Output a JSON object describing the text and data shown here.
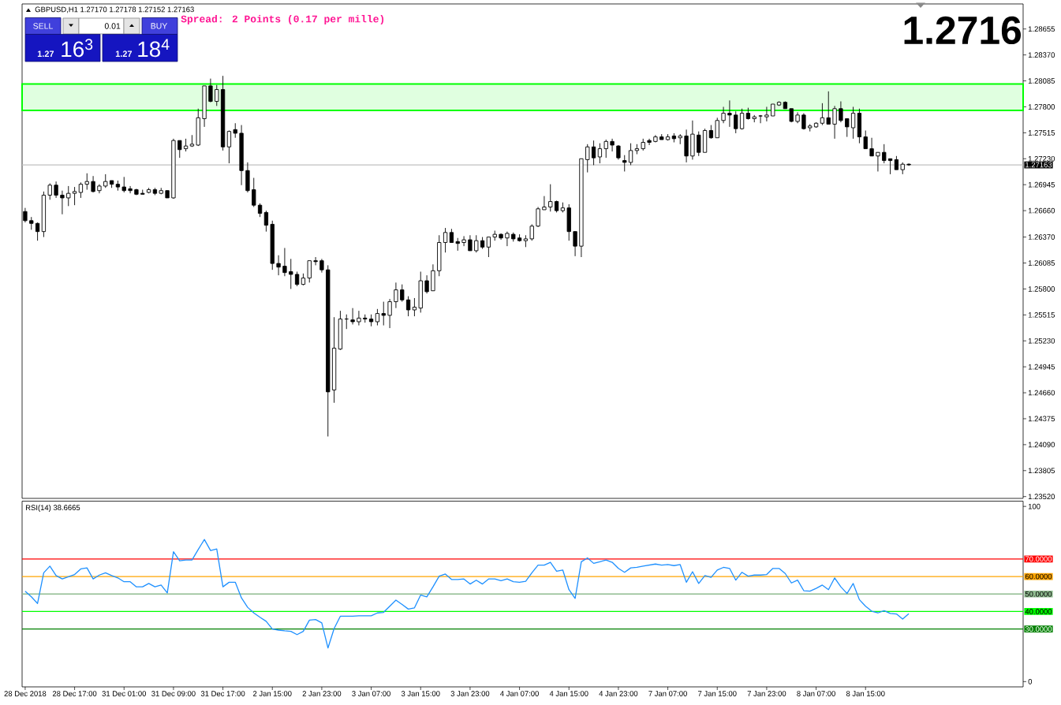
{
  "chart_data": [
    {
      "type": "candlestick",
      "title": "GBPUSD,H1 1.27170 1.27178 1.27152 1.27163",
      "annotations": [
        "Spread: 2 Points (0.17 per mille)",
        "1.2716",
        "SELL",
        "0.01",
        "BUY",
        "1.27",
        "16$^{3}$",
        "1.27",
        "18$^{4}$"
      ],
      "categories": [
        null,
        null,
        null,
        null,
        null,
        null,
        null,
        null,
        null,
        null,
        null,
        null,
        null,
        null,
        null,
        null,
        null,
        null,
        null,
        null,
        null,
        null,
        null,
        null,
        null,
        null,
        null,
        null,
        null,
        null,
        null,
        null,
        null,
        null,
        null,
        null,
        null,
        null,
        null,
        null,
        null,
        null,
        null,
        null,
        null,
        null,
        null,
        null,
        null,
        null,
        null,
        null,
        null,
        null,
        null,
        null,
        null,
        null,
        null,
        null,
        null,
        null,
        null,
        null,
        null,
        null,
        null,
        null,
        null,
        null,
        null,
        null,
        null,
        null,
        null,
        null,
        null,
        null,
        null,
        null,
        null,
        null,
        null,
        null,
        null,
        null,
        null,
        null,
        null,
        null,
        null,
        null,
        null,
        null,
        null,
        null,
        null,
        null,
        null,
        null,
        null,
        null,
        null,
        null,
        null,
        null,
        null,
        null,
        null,
        null,
        null,
        null,
        null,
        null,
        null,
        null,
        null,
        null,
        null,
        null,
        null,
        null,
        null,
        null,
        null,
        null,
        null,
        null,
        null,
        null,
        null,
        null,
        null,
        null,
        null,
        null,
        null,
        null,
        null,
        null,
        null,
        null,
        null,
        null,
        null,
        null,
        null,
        null,
        null,
        null,
        null,
        null,
        null,
        null,
        null,
        null,
        null,
        null,
        null,
        null,
        null,
        null
      ],
      "ohlc": [
        [
          1.2665,
          1.2669,
          1.2653,
          1.2655
        ],
        [
          1.2655,
          1.2659,
          1.2645,
          1.2652
        ],
        [
          1.2652,
          1.2653,
          1.2633,
          1.2643
        ],
        [
          1.2643,
          1.2687,
          1.2637,
          1.2683
        ],
        [
          1.2683,
          1.2696,
          1.2678,
          1.2694
        ],
        [
          1.2694,
          1.2698,
          1.268,
          1.2683
        ],
        [
          1.2683,
          1.2688,
          1.2662,
          1.268
        ],
        [
          1.268,
          1.2693,
          1.2671,
          1.2685
        ],
        [
          1.2685,
          1.2692,
          1.2672,
          1.2687
        ],
        [
          1.2686,
          1.2697,
          1.268,
          1.2695
        ],
        [
          1.2695,
          1.2707,
          1.2689,
          1.2698
        ],
        [
          1.2698,
          1.2704,
          1.2686,
          1.2687
        ],
        [
          1.2688,
          1.2695,
          1.2685,
          1.2693
        ],
        [
          1.2693,
          1.2706,
          1.2691,
          1.2698
        ],
        [
          1.2699,
          1.2699,
          1.2691,
          1.2695
        ],
        [
          1.2695,
          1.2699,
          1.2688,
          1.2692
        ],
        [
          1.2692,
          1.2703,
          1.2686,
          1.2688
        ],
        [
          1.269,
          1.2693,
          1.2685,
          1.2688
        ],
        [
          1.2689,
          1.269,
          1.2683,
          1.2684
        ],
        [
          1.2685,
          1.2689,
          1.2684,
          1.2684
        ],
        [
          1.2686,
          1.2691,
          1.2685,
          1.2689
        ],
        [
          1.2689,
          1.2691,
          1.2683,
          1.2685
        ],
        [
          1.2685,
          1.2691,
          1.2684,
          1.2688
        ],
        [
          1.2688,
          1.2688,
          1.268,
          1.268
        ],
        [
          1.268,
          1.2745,
          1.2679,
          1.2743
        ],
        [
          1.2743,
          1.2743,
          1.2724,
          1.2733
        ],
        [
          1.2734,
          1.2745,
          1.2731,
          1.2737
        ],
        [
          1.2737,
          1.2749,
          1.2736,
          1.2739
        ],
        [
          1.2738,
          1.2778,
          1.2737,
          1.2768
        ],
        [
          1.2767,
          1.2803,
          1.2758,
          1.2803
        ],
        [
          1.2803,
          1.2811,
          1.2785,
          1.2786
        ],
        [
          1.2786,
          1.2804,
          1.2781,
          1.2799
        ],
        [
          1.2799,
          1.2814,
          1.2732,
          1.2736
        ],
        [
          1.2736,
          1.2754,
          1.2718,
          1.2753
        ],
        [
          1.2755,
          1.2762,
          1.2746,
          1.2751
        ],
        [
          1.2751,
          1.276,
          1.2694,
          1.271
        ],
        [
          1.271,
          1.2719,
          1.2686,
          1.2688
        ],
        [
          1.2689,
          1.2702,
          1.267,
          1.2672
        ],
        [
          1.2672,
          1.2674,
          1.2659,
          1.2663
        ],
        [
          1.2664,
          1.2666,
          1.2643,
          1.265
        ],
        [
          1.2651,
          1.2655,
          1.2601,
          1.2608
        ],
        [
          1.2608,
          1.2617,
          1.2595,
          1.2604
        ],
        [
          1.2605,
          1.2625,
          1.2594,
          1.2598
        ],
        [
          1.2599,
          1.2613,
          1.258,
          1.2596
        ],
        [
          1.2596,
          1.2599,
          1.2583,
          1.2585
        ],
        [
          1.2585,
          1.2597,
          1.2584,
          1.2592
        ],
        [
          1.2592,
          1.2611,
          1.2587,
          1.2611
        ],
        [
          1.2611,
          1.2615,
          1.2606,
          1.261
        ],
        [
          1.2611,
          1.2613,
          1.2598,
          1.2601
        ],
        [
          1.2601,
          1.2606,
          1.2418,
          1.2467
        ],
        [
          1.2469,
          1.2549,
          1.2455,
          1.2515
        ],
        [
          1.2514,
          1.2556,
          1.2513,
          1.2547
        ],
        [
          1.2547,
          1.2552,
          1.2536,
          1.2547
        ],
        [
          1.2546,
          1.2559,
          1.2541,
          1.2544
        ],
        [
          1.2544,
          1.2556,
          1.254,
          1.2548
        ],
        [
          1.2548,
          1.2552,
          1.2543,
          1.2547
        ],
        [
          1.2547,
          1.2552,
          1.2539,
          1.2544
        ],
        [
          1.2544,
          1.2558,
          1.254,
          1.2553
        ],
        [
          1.2553,
          1.2566,
          1.254,
          1.2551
        ],
        [
          1.2551,
          1.2569,
          1.2537,
          1.2566
        ],
        [
          1.2566,
          1.2587,
          1.2559,
          1.2579
        ],
        [
          1.2579,
          1.2585,
          1.2566,
          1.2568
        ],
        [
          1.2568,
          1.2572,
          1.255,
          1.2557
        ],
        [
          1.2557,
          1.257,
          1.255,
          1.256
        ],
        [
          1.2559,
          1.2599,
          1.2554,
          1.2589
        ],
        [
          1.2589,
          1.2595,
          1.2575,
          1.2577
        ],
        [
          1.2578,
          1.2607,
          1.2578,
          1.26
        ],
        [
          1.26,
          1.2639,
          1.2594,
          1.2631
        ],
        [
          1.2631,
          1.2647,
          1.262,
          1.2642
        ],
        [
          1.2642,
          1.2646,
          1.2631,
          1.2631
        ],
        [
          1.2632,
          1.2636,
          1.2622,
          1.263
        ],
        [
          1.2631,
          1.2638,
          1.2627,
          1.2634
        ],
        [
          1.2634,
          1.2639,
          1.2622,
          1.2622
        ],
        [
          1.2622,
          1.2639,
          1.262,
          1.2633
        ],
        [
          1.2633,
          1.2637,
          1.2624,
          1.2626
        ],
        [
          1.2626,
          1.2637,
          1.2615,
          1.2637
        ],
        [
          1.2637,
          1.2644,
          1.2633,
          1.264
        ],
        [
          1.264,
          1.2641,
          1.2634,
          1.2636
        ],
        [
          1.2636,
          1.2643,
          1.2627,
          1.2641
        ],
        [
          1.264,
          1.2642,
          1.2632,
          1.2635
        ],
        [
          1.2636,
          1.264,
          1.2632,
          1.2633
        ],
        [
          1.2633,
          1.2639,
          1.2626,
          1.2635
        ],
        [
          1.2635,
          1.2651,
          1.2633,
          1.2649
        ],
        [
          1.2649,
          1.267,
          1.2648,
          1.2668
        ],
        [
          1.2667,
          1.2682,
          1.2667,
          1.267
        ],
        [
          1.267,
          1.2695,
          1.2665,
          1.2676
        ],
        [
          1.2676,
          1.2677,
          1.2664,
          1.2666
        ],
        [
          1.2666,
          1.2675,
          1.2664,
          1.2669
        ],
        [
          1.2669,
          1.2673,
          1.2633,
          1.2643
        ],
        [
          1.2643,
          1.2643,
          1.2616,
          1.2627
        ],
        [
          1.2627,
          1.2723,
          1.2615,
          1.2723
        ],
        [
          1.2722,
          1.2739,
          1.2708,
          1.2736
        ],
        [
          1.2736,
          1.2743,
          1.2716,
          1.2724
        ],
        [
          1.2725,
          1.274,
          1.2718,
          1.2734
        ],
        [
          1.2734,
          1.2744,
          1.2724,
          1.2742
        ],
        [
          1.2742,
          1.2745,
          1.2731,
          1.2738
        ],
        [
          1.2737,
          1.2738,
          1.2722,
          1.2724
        ],
        [
          1.2721,
          1.2727,
          1.2709,
          1.2719
        ],
        [
          1.2719,
          1.274,
          1.2716,
          1.2732
        ],
        [
          1.2732,
          1.2739,
          1.2728,
          1.2734
        ],
        [
          1.2734,
          1.2745,
          1.2732,
          1.2741
        ],
        [
          1.2743,
          1.2745,
          1.2738,
          1.2741
        ],
        [
          1.2742,
          1.2749,
          1.2741,
          1.2747
        ],
        [
          1.2747,
          1.275,
          1.2744,
          1.2744
        ],
        [
          1.2744,
          1.275,
          1.2743,
          1.2747
        ],
        [
          1.2748,
          1.2751,
          1.2741,
          1.2745
        ],
        [
          1.2746,
          1.275,
          1.2739,
          1.2748
        ],
        [
          1.2748,
          1.2755,
          1.2719,
          1.2726
        ],
        [
          1.2726,
          1.2765,
          1.2722,
          1.275
        ],
        [
          1.2749,
          1.2753,
          1.2726,
          1.273
        ],
        [
          1.273,
          1.2756,
          1.273,
          1.2754
        ],
        [
          1.2754,
          1.276,
          1.2745,
          1.2746
        ],
        [
          1.2746,
          1.2768,
          1.2746,
          1.2765
        ],
        [
          1.2765,
          1.278,
          1.2762,
          1.2773
        ],
        [
          1.2773,
          1.2787,
          1.2758,
          1.2771
        ],
        [
          1.2771,
          1.2775,
          1.2751,
          1.2756
        ],
        [
          1.2756,
          1.2778,
          1.2755,
          1.2773
        ],
        [
          1.2773,
          1.2779,
          1.2766,
          1.2767
        ],
        [
          1.2767,
          1.2771,
          1.2763,
          1.2769
        ],
        [
          1.277,
          1.2771,
          1.2762,
          1.277
        ],
        [
          1.2769,
          1.278,
          1.2764,
          1.2771
        ],
        [
          1.277,
          1.2783,
          1.277,
          1.2783
        ],
        [
          1.2782,
          1.2786,
          1.2781,
          1.2785
        ],
        [
          1.2785,
          1.2786,
          1.2778,
          1.2778
        ],
        [
          1.2778,
          1.2778,
          1.2763,
          1.2764
        ],
        [
          1.2764,
          1.2774,
          1.2762,
          1.2771
        ],
        [
          1.2771,
          1.2773,
          1.2755,
          1.2756
        ],
        [
          1.2757,
          1.2761,
          1.2753,
          1.2759
        ],
        [
          1.2758,
          1.2763,
          1.2757,
          1.2762
        ],
        [
          1.2762,
          1.2784,
          1.276,
          1.2768
        ],
        [
          1.2768,
          1.2797,
          1.2761,
          1.2761
        ],
        [
          1.2761,
          1.2781,
          1.2745,
          1.2778
        ],
        [
          1.2778,
          1.2786,
          1.2763,
          1.2765
        ],
        [
          1.2767,
          1.2767,
          1.2747,
          1.2758
        ],
        [
          1.2757,
          1.278,
          1.2745,
          1.2773
        ],
        [
          1.2773,
          1.2778,
          1.274,
          1.2747
        ],
        [
          1.2747,
          1.2754,
          1.2734,
          1.2734
        ],
        [
          1.2734,
          1.2746,
          1.2726,
          1.2726
        ],
        [
          1.2726,
          1.273,
          1.2709,
          1.273
        ],
        [
          1.273,
          1.2739,
          1.2718,
          1.2721
        ],
        [
          1.2723,
          1.2723,
          1.2706,
          1.2721
        ],
        [
          1.2722,
          1.2726,
          1.2711,
          1.2711
        ],
        [
          1.2711,
          1.2719,
          1.2706,
          1.2717
        ],
        [
          1.2717,
          1.27178,
          1.27152,
          1.27163
        ],
        null,
        null,
        null,
        null,
        null,
        null,
        null,
        null,
        null,
        null,
        null,
        null,
        null,
        null,
        null,
        null,
        null,
        null
      ],
      "ylim": [
        1.235,
        1.2893
      ],
      "yticks": [
        {
          "value": 1.2352,
          "label": "1.23520"
        },
        1.23805,
        {
          "value": 1.2409,
          "label": "1.24090"
        },
        1.24375,
        {
          "value": 1.2466,
          "label": "1.24660"
        },
        1.24945,
        {
          "value": 1.2523,
          "label": "1.25230"
        },
        1.25515,
        {
          "value": 1.258,
          "label": "1.25800"
        },
        1.26085,
        {
          "value": 1.2637,
          "label": "1.26370"
        },
        {
          "value": 1.2666,
          "label": "1.26660"
        },
        1.26945,
        {
          "value": 1.2723,
          "label": "1.27230"
        },
        1.27515,
        {
          "value": 1.278,
          "label": "1.27800"
        },
        1.28085,
        {
          "value": 1.2837,
          "label": "1.28370"
        },
        1.28655
      ],
      "ref_lines": [
        {
          "axis": "y",
          "value": 1.27163,
          "label": "1.27163",
          "color": "#c0c0c0"
        }
      ],
      "bands": [
        {
          "axis": "y",
          "from": 1.2776,
          "to": 1.2805,
          "color": "#00ff00"
        }
      ]
    },
    {
      "type": "line",
      "title": "RSI(14) 38.6665",
      "categories": [
        "28 Dec 2018",
        null,
        null,
        null,
        null,
        null,
        null,
        null,
        "28 Dec 17:00",
        null,
        null,
        null,
        null,
        null,
        null,
        null,
        "31 Dec 01:00",
        null,
        null,
        null,
        null,
        null,
        null,
        null,
        "31 Dec 09:00",
        null,
        null,
        null,
        null,
        null,
        null,
        null,
        "31 Dec 17:00",
        null,
        null,
        null,
        null,
        null,
        null,
        null,
        "2 Jan 15:00",
        null,
        null,
        null,
        null,
        null,
        null,
        null,
        "2 Jan 23:00",
        null,
        null,
        null,
        null,
        null,
        null,
        null,
        "3 Jan 07:00",
        null,
        null,
        null,
        null,
        null,
        null,
        null,
        "3 Jan 15:00",
        null,
        null,
        null,
        null,
        null,
        null,
        null,
        "3 Jan 23:00",
        null,
        null,
        null,
        null,
        null,
        null,
        null,
        "4 Jan 07:00",
        null,
        null,
        null,
        null,
        null,
        null,
        null,
        "4 Jan 15:00",
        null,
        null,
        null,
        null,
        null,
        null,
        null,
        "4 Jan 23:00",
        null,
        null,
        null,
        null,
        null,
        null,
        null,
        "7 Jan 07:00",
        null,
        null,
        null,
        null,
        null,
        null,
        null,
        "7 Jan 15:00",
        null,
        null,
        null,
        null,
        null,
        null,
        null,
        "7 Jan 23:00",
        null,
        null,
        null,
        null,
        null,
        null,
        null,
        "8 Jan 07:00",
        null,
        null,
        null,
        null,
        null,
        null,
        null,
        "8 Jan 15:00",
        null,
        null,
        null,
        null,
        null,
        null,
        null,
        null,
        null,
        null,
        null,
        null,
        null,
        null,
        null,
        null,
        null,
        null,
        null,
        null,
        null,
        null,
        null,
        null,
        null
      ],
      "series": [
        {
          "color": "#1e90ff",
          "values": [
            51.6,
            48.4,
            44.6,
            62.1,
            65.9,
            60.5,
            58.6,
            59.8,
            61.1,
            64.3,
            64.9,
            58.6,
            60.8,
            62.1,
            60.5,
            59.2,
            57.0,
            57.0,
            54.1,
            54.1,
            56.0,
            54.1,
            55.1,
            50.6,
            74.1,
            69.0,
            69.4,
            69.4,
            75.4,
            81.1,
            74.8,
            75.7,
            54.1,
            56.7,
            56.7,
            47.8,
            42.4,
            39.2,
            36.7,
            34.4,
            30.0,
            29.4,
            29.0,
            28.7,
            26.8,
            28.7,
            35.1,
            35.4,
            33.5,
            19.2,
            30.3,
            37.3,
            37.3,
            37.3,
            37.6,
            37.6,
            37.6,
            39.2,
            39.5,
            43.0,
            46.5,
            44.0,
            41.4,
            42.1,
            49.4,
            48.4,
            54.1,
            60.2,
            61.4,
            58.3,
            58.3,
            58.6,
            55.7,
            57.9,
            55.7,
            58.6,
            58.6,
            57.6,
            58.6,
            57.0,
            56.7,
            57.3,
            62.1,
            66.5,
            66.5,
            68.1,
            63.0,
            63.7,
            52.5,
            47.5,
            68.4,
            70.6,
            67.5,
            68.4,
            69.4,
            68.1,
            64.6,
            62.4,
            64.9,
            65.2,
            65.9,
            66.5,
            67.1,
            66.5,
            66.8,
            66.2,
            66.8,
            56.7,
            62.7,
            56.0,
            60.5,
            59.5,
            63.7,
            65.2,
            64.6,
            57.9,
            62.4,
            60.2,
            60.8,
            60.8,
            61.1,
            64.6,
            64.6,
            61.7,
            56.3,
            57.9,
            51.9,
            51.6,
            53.2,
            55.1,
            52.5,
            59.2,
            54.1,
            50.3,
            56.0,
            46.8,
            43.0,
            40.2,
            39.2,
            40.5,
            38.9,
            38.6,
            35.7,
            38.7,
            null,
            null,
            null,
            null,
            null,
            null,
            null,
            null,
            null,
            null,
            null,
            null,
            null,
            null,
            null,
            null,
            null,
            null
          ]
        }
      ],
      "ylim": [
        -3,
        103
      ],
      "yticks": [
        0,
        100
      ],
      "ref_lines": [
        {
          "axis": "y",
          "value": 70,
          "label": "70.0000",
          "color": "#ff0000"
        },
        {
          "axis": "y",
          "value": 60,
          "label": "60.0000",
          "color": "#ffa500"
        },
        {
          "axis": "y",
          "value": 50,
          "label": "50.0000",
          "color": "#8fbc8f"
        },
        {
          "axis": "y",
          "value": 40,
          "label": "40.0000",
          "color": "#00ff00"
        },
        {
          "axis": "y",
          "value": 30,
          "label": "30.0000",
          "color": "#008000"
        }
      ]
    }
  ]
}
